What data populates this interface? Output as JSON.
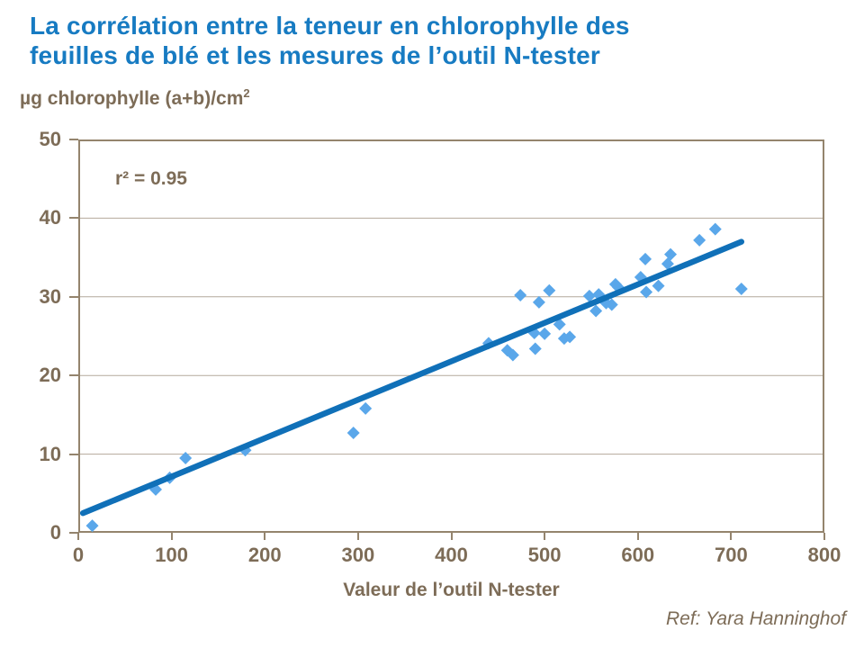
{
  "page": {
    "background": "#FFFFFF"
  },
  "header": {
    "title_line1": "La corrélation entre la teneur en chlorophylle des",
    "title_line2": "feuilles de blé et les mesures de l’outil N-tester",
    "title_color": "#177BC2"
  },
  "footer": {
    "reference": "Ref: Yara Hanninghof"
  },
  "chart_data": {
    "type": "scatter",
    "title": "La corrélation entre la teneur en chlorophylle des feuilles de blé et les mesures de l’outil N-tester",
    "xlabel": "Valeur de l’outil N-tester",
    "ylabel_base": "µg chlorophylle (a+b)/cm",
    "ylabel_exponent": "2",
    "annotation": "r² = 0.95",
    "xlim": [
      0,
      800
    ],
    "ylim": [
      0,
      50
    ],
    "x_ticks": [
      0,
      100,
      200,
      300,
      400,
      500,
      600,
      700,
      800
    ],
    "y_ticks": [
      0,
      10,
      20,
      30,
      40,
      50
    ],
    "grid": "horizontal-only",
    "legend": "none",
    "marker_shape": "diamond",
    "points": [
      [
        15,
        0.9
      ],
      [
        83,
        5.5
      ],
      [
        98,
        7.0
      ],
      [
        115,
        9.5
      ],
      [
        179,
        10.5
      ],
      [
        295,
        12.7
      ],
      [
        308,
        15.8
      ],
      [
        440,
        24.1
      ],
      [
        460,
        23.2
      ],
      [
        466,
        22.6
      ],
      [
        474,
        30.2
      ],
      [
        489,
        25.4
      ],
      [
        490,
        23.4
      ],
      [
        494,
        29.3
      ],
      [
        500,
        25.3
      ],
      [
        505,
        30.8
      ],
      [
        516,
        26.5
      ],
      [
        521,
        24.7
      ],
      [
        527,
        24.9
      ],
      [
        548,
        30.1
      ],
      [
        555,
        28.2
      ],
      [
        558,
        30.3
      ],
      [
        566,
        29.2
      ],
      [
        572,
        29.0
      ],
      [
        576,
        31.6
      ],
      [
        579,
        31.2
      ],
      [
        603,
        32.5
      ],
      [
        608,
        34.8
      ],
      [
        609,
        30.6
      ],
      [
        622,
        31.4
      ],
      [
        632,
        34.2
      ],
      [
        635,
        35.4
      ],
      [
        666,
        37.2
      ],
      [
        683,
        38.6
      ],
      [
        711,
        31.0
      ]
    ],
    "trend": {
      "x": [
        5,
        711
      ],
      "y": [
        2.5,
        37.0
      ]
    },
    "colors": {
      "marker": "#5AA7EA",
      "trend_line": "#1070B8",
      "gridline": "#B4A99B",
      "frame": "#94846D",
      "axis_text": "#7D6C57"
    }
  }
}
